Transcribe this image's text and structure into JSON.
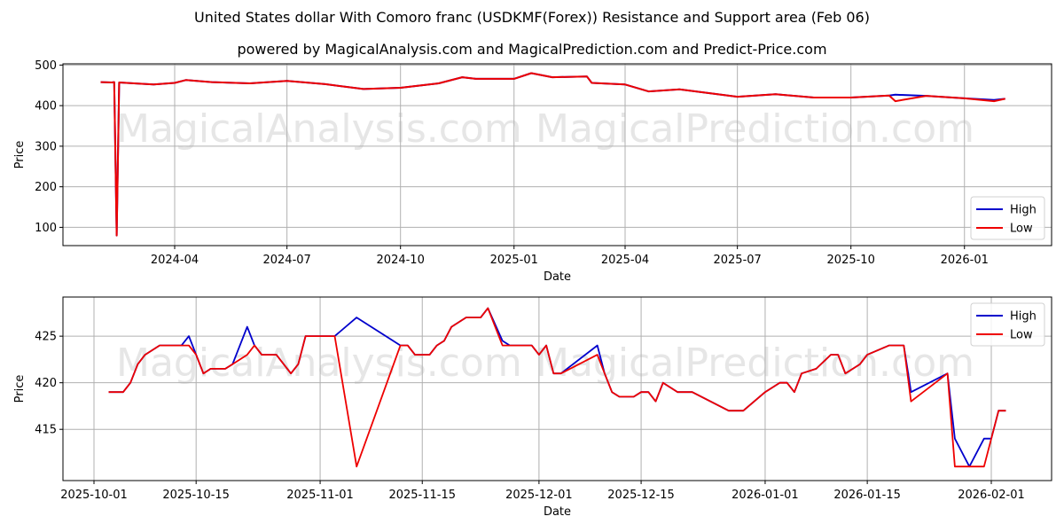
{
  "header": {
    "title": "United States dollar With Comoro franc (USDKMF(Forex)) Resistance and Support area (Feb 06)",
    "subtitle": "powered by MagicalAnalysis.com and MagicalPrediction.com and Predict-Price.com"
  },
  "watermarks": [
    "MagicalAnalysis.com",
    "MagicalPrediction.com"
  ],
  "colors": {
    "high": "#0000cc",
    "low": "#ee0000",
    "grid": "#b0b0b0",
    "watermark": "#e6e6e6"
  },
  "chart_data": [
    {
      "type": "line",
      "title": "",
      "xlabel": "Date",
      "ylabel": "Price",
      "ylim": [
        55,
        503
      ],
      "yticks": [
        100,
        200,
        300,
        400,
        500
      ],
      "xticks": [
        "2024-04",
        "2024-07",
        "2024-10",
        "2025-01",
        "2025-04",
        "2025-07",
        "2025-10",
        "2026-01"
      ],
      "grid": true,
      "legend": {
        "position": "lower right",
        "entries": [
          "High",
          "Low"
        ]
      },
      "x": [
        "2024-02-01",
        "2024-02-10",
        "2024-02-12",
        "2024-02-14",
        "2024-02-16",
        "2024-02-28",
        "2024-03-15",
        "2024-04-01",
        "2024-04-10",
        "2024-05-01",
        "2024-06-01",
        "2024-07-01",
        "2024-08-01",
        "2024-09-01",
        "2024-10-01",
        "2024-11-01",
        "2024-11-20",
        "2024-12-01",
        "2025-01-01",
        "2025-01-15",
        "2025-02-01",
        "2025-03-01",
        "2025-03-05",
        "2025-04-01",
        "2025-04-20",
        "2025-05-15",
        "2025-07-01",
        "2025-08-01",
        "2025-09-01",
        "2025-10-01",
        "2025-11-01",
        "2025-11-06",
        "2025-12-01",
        "2026-01-01",
        "2026-01-25",
        "2026-02-03"
      ],
      "series": [
        {
          "name": "High",
          "values": [
            458,
            457,
            458,
            80,
            457,
            455,
            452,
            456,
            463,
            458,
            455,
            461,
            453,
            441,
            444,
            455,
            470,
            466,
            466,
            480,
            470,
            472,
            456,
            452,
            435,
            440,
            422,
            428,
            420,
            420,
            425,
            427,
            424,
            418,
            414,
            417
          ]
        },
        {
          "name": "Low",
          "values": [
            458,
            457,
            458,
            80,
            457,
            455,
            452,
            456,
            463,
            458,
            455,
            461,
            453,
            441,
            444,
            455,
            470,
            466,
            466,
            480,
            470,
            472,
            456,
            452,
            435,
            440,
            422,
            428,
            420,
            420,
            425,
            411,
            424,
            418,
            411,
            417
          ]
        }
      ]
    },
    {
      "type": "line",
      "title": "",
      "xlabel": "Date",
      "ylabel": "Price",
      "ylim": [
        409.5,
        429.2
      ],
      "yticks": [
        415,
        420,
        425
      ],
      "xticks": [
        "2025-10-01",
        "2025-10-15",
        "2025-11-01",
        "2025-11-15",
        "2025-12-01",
        "2025-12-15",
        "2026-01-01",
        "2026-01-15",
        "2026-02-01"
      ],
      "grid": true,
      "legend": {
        "position": "upper right",
        "entries": [
          "High",
          "Low"
        ]
      },
      "x": [
        "2025-10-03",
        "2025-10-05",
        "2025-10-06",
        "2025-10-07",
        "2025-10-08",
        "2025-10-09",
        "2025-10-10",
        "2025-10-11",
        "2025-10-12",
        "2025-10-13",
        "2025-10-14",
        "2025-10-15",
        "2025-10-16",
        "2025-10-17",
        "2025-10-19",
        "2025-10-20",
        "2025-10-22",
        "2025-10-23",
        "2025-10-24",
        "2025-10-26",
        "2025-10-27",
        "2025-10-28",
        "2025-10-29",
        "2025-10-30",
        "2025-11-03",
        "2025-11-06",
        "2025-11-12",
        "2025-11-13",
        "2025-11-14",
        "2025-11-16",
        "2025-11-17",
        "2025-11-18",
        "2025-11-19",
        "2025-11-20",
        "2025-11-21",
        "2025-11-23",
        "2025-11-24",
        "2025-11-26",
        "2025-11-27",
        "2025-11-30",
        "2025-12-01",
        "2025-12-02",
        "2025-12-03",
        "2025-12-04",
        "2025-12-09",
        "2025-12-10",
        "2025-12-11",
        "2025-12-12",
        "2025-12-14",
        "2025-12-15",
        "2025-12-16",
        "2025-12-17",
        "2025-12-18",
        "2025-12-20",
        "2025-12-22",
        "2025-12-27",
        "2025-12-29",
        "2026-01-01",
        "2026-01-03",
        "2026-01-04",
        "2026-01-05",
        "2026-01-06",
        "2026-01-08",
        "2026-01-10",
        "2026-01-11",
        "2026-01-12",
        "2026-01-14",
        "2026-01-15",
        "2026-01-18",
        "2026-01-19",
        "2026-01-20",
        "2026-01-21",
        "2026-01-26",
        "2026-01-27",
        "2026-01-29",
        "2026-01-31",
        "2026-02-01",
        "2026-02-02",
        "2026-02-03"
      ],
      "series": [
        {
          "name": "High",
          "values": [
            419,
            419,
            420,
            422,
            423,
            423.5,
            424,
            424,
            424,
            424,
            425,
            423,
            421,
            421.5,
            421.5,
            422,
            426,
            424,
            423,
            423,
            422,
            421,
            422,
            425,
            425,
            427,
            424,
            424,
            423,
            423,
            424,
            424.5,
            426,
            426.5,
            427,
            427,
            428,
            424.5,
            424,
            424,
            423,
            424,
            421,
            421,
            424,
            421,
            419,
            418.5,
            418.5,
            419,
            419,
            418,
            420,
            419,
            419,
            417,
            417,
            419,
            420,
            420,
            419,
            421,
            421.5,
            423,
            423,
            421,
            422,
            423,
            424,
            424,
            424,
            419,
            421,
            414,
            411,
            414,
            414,
            417,
            417
          ]
        },
        {
          "name": "Low",
          "values": [
            419,
            419,
            420,
            422,
            423,
            423.5,
            424,
            424,
            424,
            424,
            424,
            423,
            421,
            421.5,
            421.5,
            422,
            423,
            424,
            423,
            423,
            422,
            421,
            422,
            425,
            425,
            411,
            424,
            424,
            423,
            423,
            424,
            424.5,
            426,
            426.5,
            427,
            427,
            428,
            424,
            424,
            424,
            423,
            424,
            421,
            421,
            423,
            421,
            419,
            418.5,
            418.5,
            419,
            419,
            418,
            420,
            419,
            419,
            417,
            417,
            419,
            420,
            420,
            419,
            421,
            421.5,
            423,
            423,
            421,
            422,
            423,
            424,
            424,
            424,
            418,
            421,
            411,
            411,
            411,
            414,
            417,
            417
          ]
        }
      ]
    }
  ]
}
